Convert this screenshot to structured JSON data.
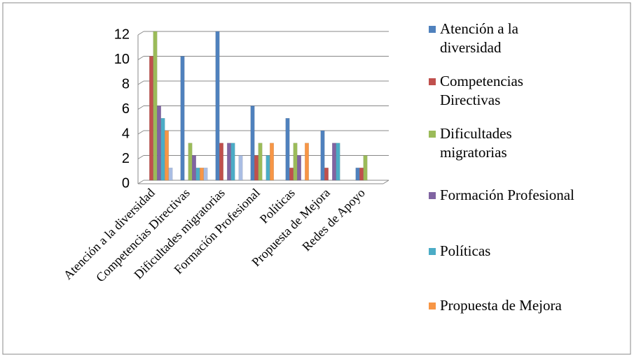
{
  "chart_data": {
    "type": "bar",
    "categories": [
      "Atención a la diversidad",
      "Competencias Directivas",
      "Dificultades migratorias",
      "Formación Profesional",
      "Políticas",
      "Propuesta de Mejora",
      "Redes de Apoyo"
    ],
    "series": [
      {
        "name": "Atención a la diversidad",
        "color": "#4f81bd",
        "values": [
          0,
          10,
          12,
          6,
          5,
          4,
          1
        ]
      },
      {
        "name": "Competencias Directivas",
        "color": "#c0504d",
        "values": [
          10,
          0,
          3,
          2,
          1,
          1,
          1
        ]
      },
      {
        "name": "Dificultades migratorias",
        "color": "#9bbb59",
        "values": [
          12,
          3,
          0,
          3,
          3,
          0,
          2
        ]
      },
      {
        "name": "Formación Profesional",
        "color": "#8064a2",
        "values": [
          6,
          2,
          3,
          0,
          2,
          3,
          0
        ]
      },
      {
        "name": "Políticas",
        "color": "#4bacc6",
        "values": [
          5,
          1,
          3,
          2,
          0,
          3,
          0
        ]
      },
      {
        "name": "Propuesta de Mejora",
        "color": "#f79646",
        "values": [
          4,
          1,
          0,
          3,
          3,
          0,
          0
        ]
      },
      {
        "color": "#a9bde3",
        "values": [
          1,
          1,
          2,
          0,
          0,
          0,
          0
        ]
      }
    ],
    "ylim": [
      0,
      12
    ],
    "yticks": [
      0,
      2,
      4,
      6,
      8,
      10,
      12
    ],
    "grid": true,
    "legend": "right"
  }
}
